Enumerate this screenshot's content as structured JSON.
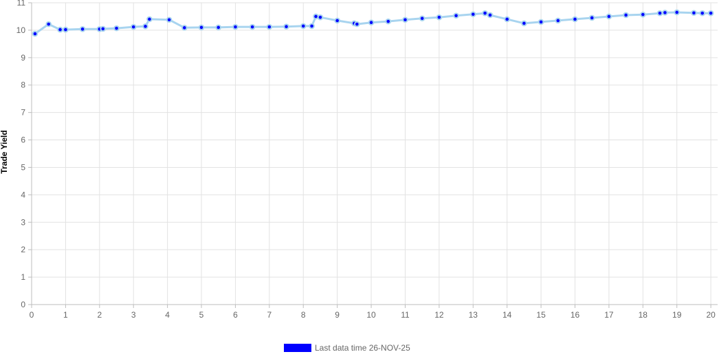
{
  "chart_data": {
    "type": "line",
    "title": "",
    "xlabel": "",
    "ylabel": "Trade Yield",
    "xlim": [
      0,
      20.2
    ],
    "ylim": [
      0,
      11
    ],
    "x_ticks": [
      0,
      1,
      2,
      3,
      4,
      5,
      6,
      7,
      8,
      9,
      10,
      11,
      12,
      13,
      14,
      15,
      16,
      17,
      18,
      19,
      20
    ],
    "y_ticks": [
      0,
      1,
      2,
      3,
      4,
      5,
      6,
      7,
      8,
      9,
      10,
      11
    ],
    "grid": true,
    "legend_position": "bottom",
    "series": [
      {
        "name": "Last data time 26-NOV-25",
        "line_color": "#a8d4ef",
        "point_color": "#0000ff",
        "points": [
          [
            0.1,
            9.87
          ],
          [
            0.5,
            10.22
          ],
          [
            0.84,
            10.02
          ],
          [
            1.0,
            10.02
          ],
          [
            1.5,
            10.04
          ],
          [
            2.0,
            10.04
          ],
          [
            2.1,
            10.05
          ],
          [
            2.5,
            10.07
          ],
          [
            3.0,
            10.12
          ],
          [
            3.35,
            10.14
          ],
          [
            3.47,
            10.4
          ],
          [
            4.05,
            10.38
          ],
          [
            4.5,
            10.09
          ],
          [
            5.0,
            10.1
          ],
          [
            5.5,
            10.1
          ],
          [
            6.0,
            10.12
          ],
          [
            6.5,
            10.12
          ],
          [
            7.0,
            10.12
          ],
          [
            7.5,
            10.13
          ],
          [
            8.0,
            10.15
          ],
          [
            8.25,
            10.15
          ],
          [
            8.37,
            10.5
          ],
          [
            8.5,
            10.47
          ],
          [
            9.0,
            10.35
          ],
          [
            9.5,
            10.25
          ],
          [
            9.58,
            10.22
          ],
          [
            10.0,
            10.28
          ],
          [
            10.5,
            10.32
          ],
          [
            11.0,
            10.38
          ],
          [
            11.5,
            10.43
          ],
          [
            12.0,
            10.47
          ],
          [
            12.5,
            10.53
          ],
          [
            13.0,
            10.58
          ],
          [
            13.35,
            10.62
          ],
          [
            13.5,
            10.55
          ],
          [
            14.0,
            10.4
          ],
          [
            14.5,
            10.25
          ],
          [
            15.0,
            10.3
          ],
          [
            15.5,
            10.35
          ],
          [
            16.0,
            10.4
          ],
          [
            16.5,
            10.45
          ],
          [
            17.0,
            10.5
          ],
          [
            17.5,
            10.55
          ],
          [
            18.0,
            10.57
          ],
          [
            18.5,
            10.62
          ],
          [
            18.65,
            10.64
          ],
          [
            19.0,
            10.65
          ],
          [
            19.5,
            10.63
          ],
          [
            19.75,
            10.62
          ],
          [
            20.0,
            10.62
          ]
        ]
      }
    ]
  }
}
